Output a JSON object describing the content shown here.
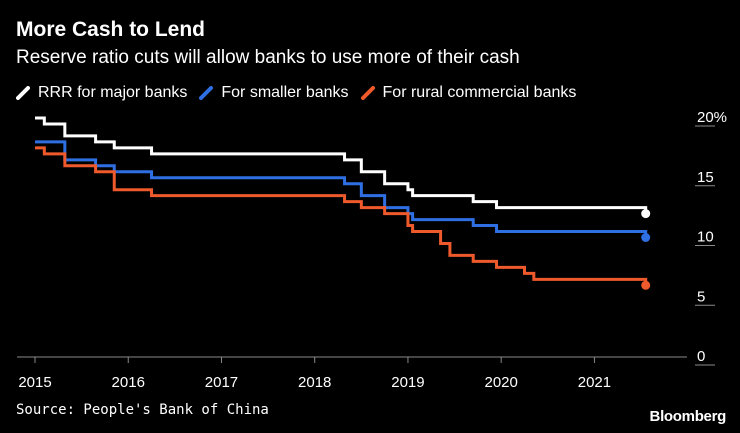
{
  "chart_data": {
    "type": "line",
    "title": "More Cash to Lend",
    "subtitle": "Reserve ratio cuts will allow banks to use more of their cash",
    "source": "Source: People's Bank of China",
    "brand": "Bloomberg",
    "xlim": [
      2015.0,
      2021.95
    ],
    "ylim": [
      0,
      20
    ],
    "x_ticks": [
      2015,
      2016,
      2017,
      2018,
      2019,
      2020,
      2021
    ],
    "x_tick_labels": [
      "2015",
      "2016",
      "2017",
      "2018",
      "2019",
      "2020",
      "2021"
    ],
    "y_ticks": [
      0,
      5,
      10,
      15,
      20
    ],
    "y_tick_labels": [
      "0",
      "5",
      "10",
      "15",
      "20%"
    ],
    "series": [
      {
        "name": "RRR for major banks",
        "color": "#ffffff",
        "x": [
          2015.0,
          2015.1,
          2015.32,
          2015.65,
          2015.85,
          2016.25,
          2018.32,
          2018.5,
          2018.75,
          2019.0,
          2019.05,
          2019.7,
          2019.95,
          2021.55
        ],
        "y": [
          20.0,
          19.5,
          18.5,
          18.0,
          17.5,
          17.0,
          16.5,
          15.5,
          14.5,
          14.0,
          13.5,
          13.0,
          12.5,
          12.0
        ]
      },
      {
        "name": "For smaller banks",
        "color": "#2f6fe4",
        "x": [
          2015.0,
          2015.32,
          2015.65,
          2015.85,
          2016.25,
          2018.32,
          2018.5,
          2018.75,
          2019.0,
          2019.05,
          2019.7,
          2019.95,
          2021.55
        ],
        "y": [
          18.0,
          16.5,
          16.0,
          15.5,
          15.0,
          14.5,
          13.5,
          12.5,
          12.0,
          11.5,
          11.0,
          10.5,
          10.0
        ]
      },
      {
        "name": "For rural commercial banks",
        "color": "#ee5a2b",
        "x": [
          2015.0,
          2015.1,
          2015.32,
          2015.65,
          2015.85,
          2016.25,
          2018.32,
          2018.5,
          2018.75,
          2019.0,
          2019.05,
          2019.35,
          2019.45,
          2019.7,
          2019.95,
          2020.25,
          2020.35,
          2021.55
        ],
        "y": [
          17.5,
          17.0,
          16.0,
          15.5,
          14.0,
          13.5,
          13.0,
          12.5,
          12.0,
          11.0,
          10.5,
          9.5,
          8.5,
          8.0,
          7.5,
          7.0,
          6.5,
          6.0
        ]
      }
    ]
  }
}
